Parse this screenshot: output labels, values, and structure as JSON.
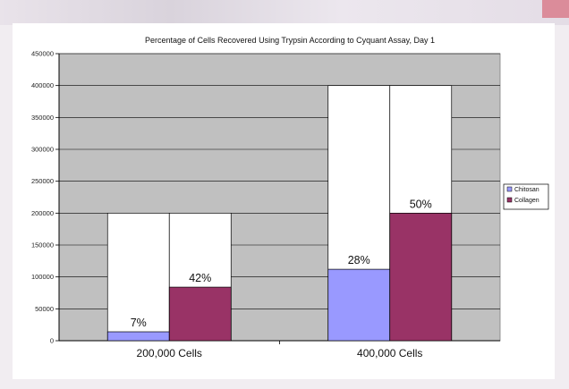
{
  "chart_data": {
    "type": "bar",
    "title": "Percentage of Cells Recovered Using Trypsin According to Cyquant Assay, Day 1",
    "xlabel": "",
    "ylabel": "",
    "ylim": [
      0,
      450000
    ],
    "yticks": [
      "0",
      "50000",
      "100000",
      "150000",
      "200000",
      "250000",
      "300000",
      "350000",
      "400000",
      "450000"
    ],
    "categories": [
      "200,000 Cells",
      "400,000 Cells"
    ],
    "totals": [
      200000,
      400000
    ],
    "series": [
      {
        "name": "Chitosan",
        "values": [
          14000,
          112000
        ],
        "labels": [
          "7%",
          "28%"
        ],
        "color": "#9999ff"
      },
      {
        "name": "Collagen",
        "values": [
          84000,
          200000
        ],
        "labels": [
          "42%",
          "50%"
        ],
        "color": "#993366"
      }
    ],
    "plot_background": "#c0c0c0",
    "grid": true,
    "legend": "right"
  }
}
